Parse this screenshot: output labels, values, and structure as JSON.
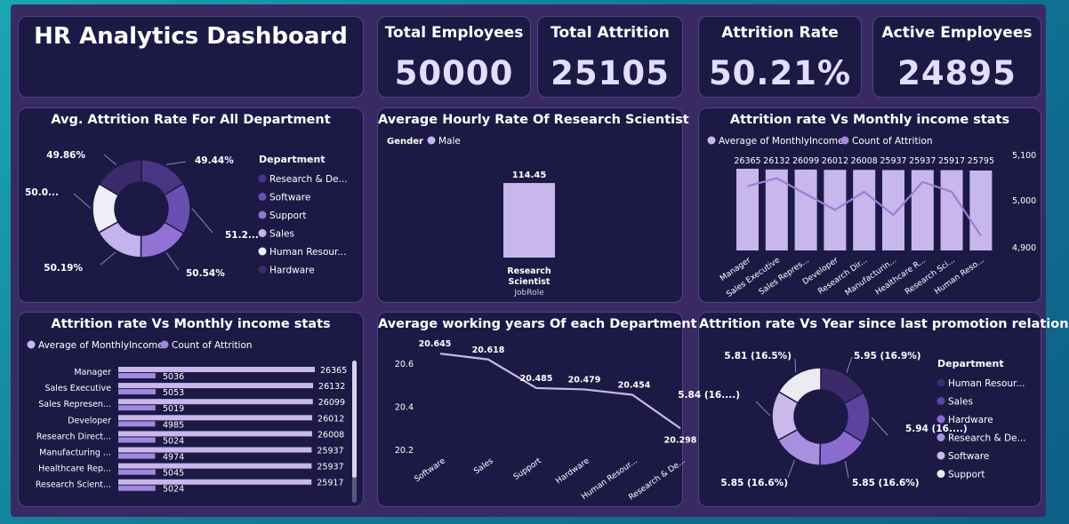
{
  "dashboard": {
    "title": "HR Analytics Dashboard"
  },
  "kpis": [
    {
      "title": "Total Employees",
      "value": "50000"
    },
    {
      "title": "Total Attrition",
      "value": "25105"
    },
    {
      "title": "Attrition Rate",
      "value": "50.21%"
    },
    {
      "title": "Active Employees",
      "value": "24895"
    }
  ],
  "colors": {
    "bar_light": "#c7b7ec",
    "line": "#9b7fd4",
    "accent": "#a287dc",
    "card_bg": "#1c1a45"
  },
  "chart_data": [
    {
      "type": "pie",
      "title": "Avg. Attrition Rate For All Department",
      "legend_title": "Department",
      "legend_position": "right",
      "categories": [
        "Research & De...",
        "Software",
        "Support",
        "Sales",
        "Human Resour...",
        "Hardware"
      ],
      "values": [
        49.44,
        51.2,
        50.54,
        50.19,
        50.0,
        49.86
      ],
      "slice_labels": [
        "49.44%",
        "51.2...",
        "50.54%",
        "50.19%",
        "50.0...",
        "49.86%"
      ],
      "colors": [
        "#4a3585",
        "#6a4fb2",
        "#9273d4",
        "#c4b3ec",
        "#f0edf6",
        "#3b2b6d"
      ]
    },
    {
      "type": "bar",
      "title": "Average Hourly Rate Of Research Scientist",
      "legend_title": "Gender",
      "series": [
        {
          "name": "Male",
          "values": [
            114.45
          ]
        }
      ],
      "categories": [
        "Research Scientist"
      ],
      "data_labels": [
        "114.45"
      ],
      "xlabel": "JobRole"
    },
    {
      "type": "bar",
      "title": "Attrition rate Vs Monthly income stats",
      "legend": [
        "Average of MonthlyIncome",
        "Count of Attrition"
      ],
      "categories": [
        "Manager",
        "Sales Executive",
        "Sales Repres...",
        "Developer",
        "Research Dir...",
        "Manufacturin...",
        "Healthcare R...",
        "Research Sci...",
        "Human Reso..."
      ],
      "series": [
        {
          "name": "Count of Attrition",
          "values": [
            26365,
            26132,
            26099,
            26012,
            26008,
            25937,
            25937,
            25917,
            25795
          ]
        },
        {
          "name": "Average of MonthlyIncome",
          "values": [
            5036,
            5053,
            5019,
            4985,
            5024,
            4974,
            5045,
            5024,
            4930
          ]
        }
      ],
      "y2_ticks": [
        "5,100",
        "5,000",
        "4,900"
      ],
      "y2lim": [
        4900,
        5100
      ]
    },
    {
      "type": "bar",
      "title": "Attrition rate Vs Monthly income stats",
      "legend": [
        "Average of MonthlyIncome",
        "Count of Attrition"
      ],
      "categories": [
        "Manager",
        "Sales Executive",
        "Sales Represen...",
        "Developer",
        "Research Direct...",
        "Manufacturing ...",
        "Healthcare Rep...",
        "Research Scient..."
      ],
      "series": [
        {
          "name": "Count of Attrition",
          "values": [
            26365,
            26132,
            26099,
            26012,
            26008,
            25937,
            25937,
            25917
          ]
        },
        {
          "name": "Average of MonthlyIncome",
          "values": [
            5036,
            5053,
            5019,
            4985,
            5024,
            4974,
            5045,
            5024
          ]
        }
      ]
    },
    {
      "type": "line",
      "title": "Average working years Of each Department",
      "categories": [
        "Software",
        "Sales",
        "Support",
        "Hardware",
        "Human Resour...",
        "Research & De..."
      ],
      "values": [
        20.645,
        20.618,
        20.485,
        20.479,
        20.454,
        20.298
      ],
      "y_ticks": [
        "20.6",
        "20.4",
        "20.2"
      ],
      "ylim": [
        20.2,
        20.65
      ]
    },
    {
      "type": "pie",
      "title": "Attrition rate Vs Year since last promotion relation",
      "legend_title": "Department",
      "legend_position": "right",
      "categories": [
        "Human Resour...",
        "Sales",
        "Hardware",
        "Research & De...",
        "Software",
        "Support"
      ],
      "values": [
        5.95,
        5.94,
        5.85,
        5.85,
        5.84,
        5.81
      ],
      "slice_labels": [
        "5.95 (16.9%)",
        "5.94 (16....)",
        "5.85 (16.6%)",
        "5.85 (16.6%)",
        "5.84 (16....)",
        "5.81 (16.5%)"
      ],
      "colors": [
        "#3b2b6d",
        "#5c43a0",
        "#8a6cd0",
        "#a790df",
        "#c9b9ec",
        "#ecebf3"
      ]
    }
  ]
}
